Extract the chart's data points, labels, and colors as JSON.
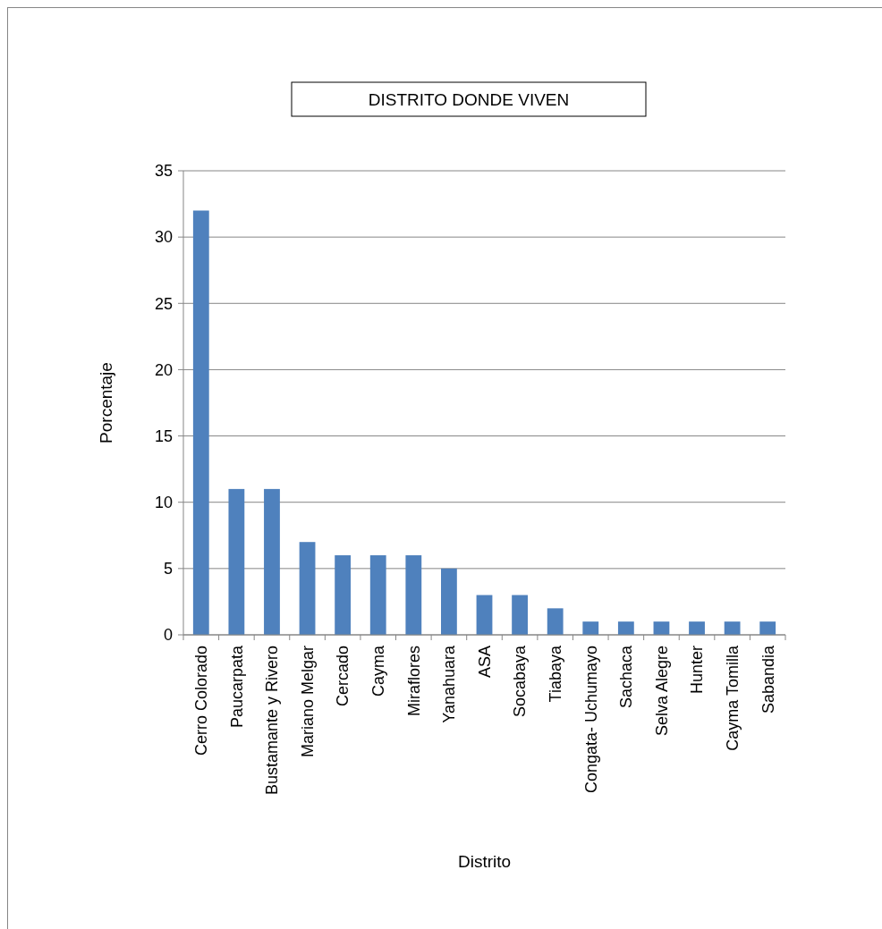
{
  "chart_data": {
    "type": "bar",
    "title": "DISTRITO DONDE VIVEN",
    "xlabel": "Distrito",
    "ylabel": "Porcentaje",
    "categories": [
      "Cerro Colorado",
      "Paucarpata",
      "Bustamante y Rivero",
      "Mariano Melgar",
      "Cercado",
      "Cayma",
      "Miraflores",
      "Yanahuara",
      "ASA",
      "Socabaya",
      "Tiabaya",
      "Congata- Uchumayo",
      "Sachaca",
      "Selva Alegre",
      "Hunter",
      "Cayma Tomilla",
      "Sabandia"
    ],
    "values": [
      32,
      11,
      11,
      7,
      6,
      6,
      6,
      5,
      3,
      3,
      2,
      1,
      1,
      1,
      1,
      1,
      1
    ],
    "color": "#4f81bd",
    "ylim": [
      0,
      35
    ],
    "yticks": [
      0,
      5,
      10,
      15,
      20,
      25,
      30,
      35
    ],
    "grid": "y"
  }
}
